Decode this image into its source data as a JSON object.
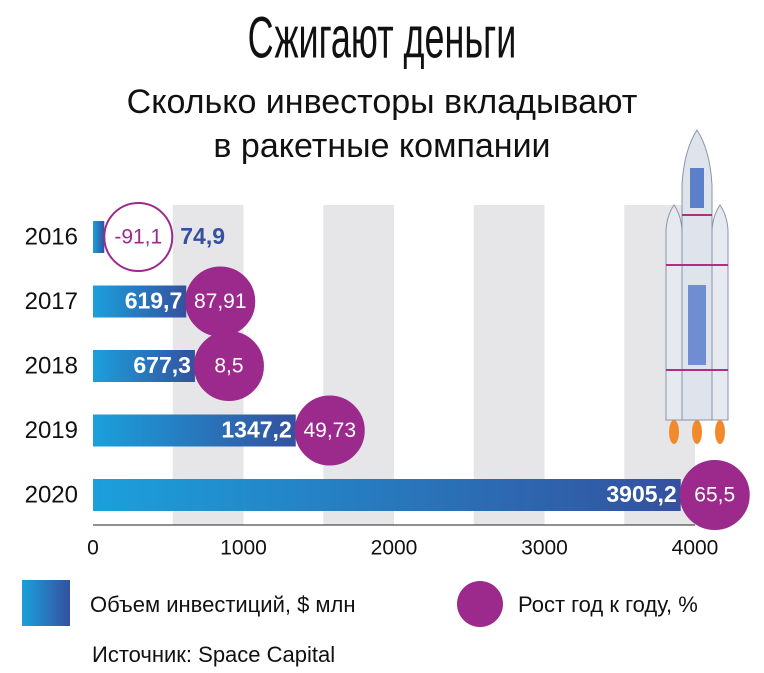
{
  "chart_data": {
    "type": "bar",
    "orientation": "horizontal",
    "title": "Сжигают деньги",
    "subtitle": [
      "Сколько инвесторы вкладывают",
      "в ракетные компании"
    ],
    "categories": [
      "2016",
      "2017",
      "2018",
      "2019",
      "2020"
    ],
    "series": [
      {
        "name": "Объем инвестиций, $ млн",
        "color": "#34519f",
        "values": [
          74.9,
          619.7,
          677.3,
          1347.2,
          3905.2
        ],
        "value_labels": [
          "74,9",
          "619,7",
          "677,3",
          "1347,2",
          "3905,2"
        ]
      },
      {
        "name": "Рост год к году, %",
        "color": "#9b2a8c",
        "values": [
          -91.1,
          87.91,
          8.5,
          49.73,
          65.5
        ],
        "value_labels": [
          "-91,1",
          "87,91",
          "8,5",
          "49,73",
          "65,5"
        ]
      }
    ],
    "xlim": [
      0,
      4000
    ],
    "xticks": [
      0,
      1000,
      2000,
      3000,
      4000
    ],
    "source": "Источник: Space Capital"
  }
}
